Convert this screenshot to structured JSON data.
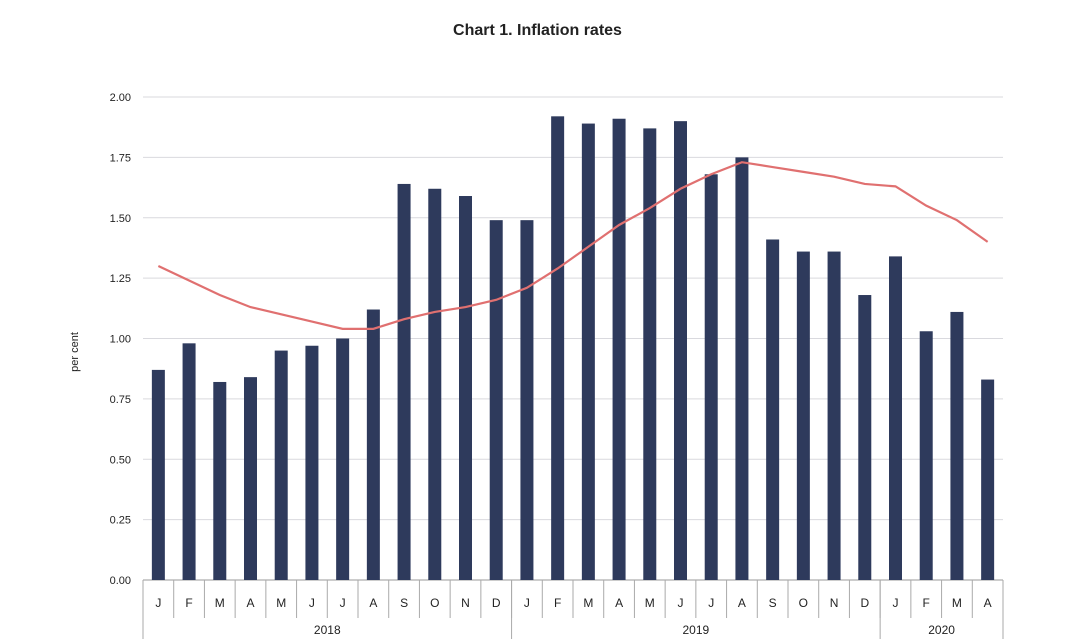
{
  "chart_data": {
    "type": "bar",
    "title": "Chart 1.  Inflation rates",
    "ylabel": "per cent",
    "xlabel": "",
    "ylim": [
      0,
      2.0
    ],
    "yticks": [
      "0.00",
      "0.25",
      "0.50",
      "0.75",
      "1.00",
      "1.25",
      "1.50",
      "1.75",
      "2.00"
    ],
    "grid": true,
    "legend": "none",
    "categories": [
      "J",
      "F",
      "M",
      "A",
      "M",
      "J",
      "J",
      "A",
      "S",
      "O",
      "N",
      "D",
      "J",
      "F",
      "M",
      "A",
      "M",
      "J",
      "J",
      "A",
      "S",
      "O",
      "N",
      "D",
      "J",
      "F",
      "M",
      "A"
    ],
    "years": [
      {
        "label": "2018",
        "months": 12
      },
      {
        "label": "2019",
        "months": 12
      },
      {
        "label": "2020",
        "months": 4
      }
    ],
    "series": [
      {
        "type": "bar",
        "color": "#2e3a5c",
        "values": [
          0.87,
          0.98,
          0.82,
          0.84,
          0.95,
          0.97,
          1.0,
          1.12,
          1.64,
          1.62,
          1.59,
          1.49,
          1.49,
          1.92,
          1.89,
          1.91,
          1.87,
          1.9,
          1.68,
          1.75,
          1.41,
          1.36,
          1.36,
          1.18,
          1.34,
          1.03,
          1.11,
          0.83
        ]
      },
      {
        "type": "line",
        "color": "#e07070",
        "values": [
          1.3,
          1.24,
          1.18,
          1.13,
          1.1,
          1.07,
          1.04,
          1.04,
          1.08,
          1.11,
          1.13,
          1.16,
          1.21,
          1.29,
          1.38,
          1.47,
          1.54,
          1.62,
          1.68,
          1.73,
          1.71,
          1.69,
          1.67,
          1.64,
          1.63,
          1.55,
          1.49,
          1.4
        ]
      }
    ]
  }
}
